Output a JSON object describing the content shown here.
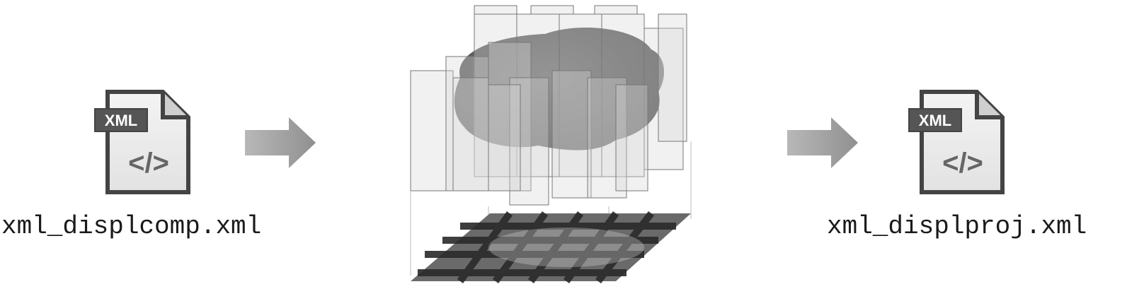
{
  "diagram": {
    "input_file": {
      "icon": "xml-file-icon",
      "badge_text": "XML",
      "code_glyph": "</>",
      "filename": "xml_displcomp.xml"
    },
    "output_file": {
      "icon": "xml-file-icon",
      "badge_text": "XML",
      "code_glyph": "</>",
      "filename": "xml_displproj.xml"
    },
    "center_graphic": "3d-volume-projection",
    "arrow_icon": "right-arrow-icon"
  }
}
